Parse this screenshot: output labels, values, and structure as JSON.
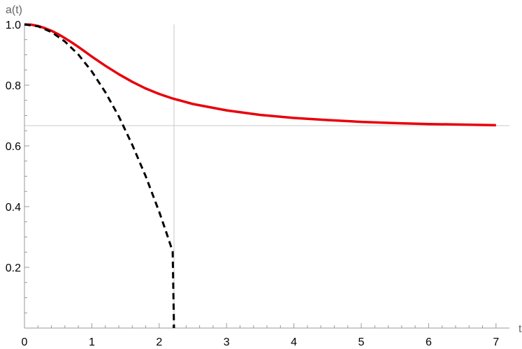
{
  "chart_data": {
    "type": "line",
    "title": "",
    "xlabel": "t",
    "ylabel": "a(t)",
    "xlim": [
      0,
      7.2
    ],
    "ylim": [
      0,
      1.0
    ],
    "grid": false,
    "x_ticks": [
      0,
      1,
      2,
      3,
      4,
      5,
      6,
      7
    ],
    "x_tick_labels": [
      "0",
      "1",
      "2",
      "3",
      "4",
      "5",
      "6",
      "7"
    ],
    "y_ticks": [
      0.2,
      0.4,
      0.6,
      0.8,
      1.0
    ],
    "y_tick_labels": [
      "0.2",
      "0.4",
      "0.6",
      "0.8",
      "1.0"
    ],
    "reference_lines": {
      "horizontal_y": 0.6667,
      "vertical_x": 2.22,
      "color": "#c8c8c8"
    },
    "series": [
      {
        "color": "#e8000b",
        "style": "solid",
        "x": [
          0,
          0.1,
          0.2,
          0.3,
          0.4,
          0.5,
          0.6,
          0.7,
          0.8,
          0.9,
          1.0,
          1.2,
          1.4,
          1.6,
          1.8,
          2.0,
          2.2,
          2.5,
          3.0,
          3.5,
          4.0,
          4.5,
          5.0,
          5.5,
          6.0,
          6.5,
          7.0
        ],
        "y": [
          1.0,
          0.999,
          0.995,
          0.988,
          0.979,
          0.968,
          0.955,
          0.941,
          0.926,
          0.91,
          0.894,
          0.864,
          0.836,
          0.811,
          0.789,
          0.771,
          0.756,
          0.738,
          0.717,
          0.702,
          0.692,
          0.685,
          0.679,
          0.675,
          0.672,
          0.67,
          0.668
        ]
      },
      {
        "color": "#000000",
        "style": "dashed",
        "x": [
          0,
          0.2,
          0.4,
          0.6,
          0.8,
          1.0,
          1.2,
          1.4,
          1.6,
          1.8,
          2.0,
          2.1,
          2.2,
          2.22
        ],
        "y": [
          1.0,
          0.994,
          0.975,
          0.944,
          0.901,
          0.845,
          0.777,
          0.697,
          0.604,
          0.5,
          0.383,
          0.319,
          0.252,
          0.0
        ]
      }
    ]
  }
}
